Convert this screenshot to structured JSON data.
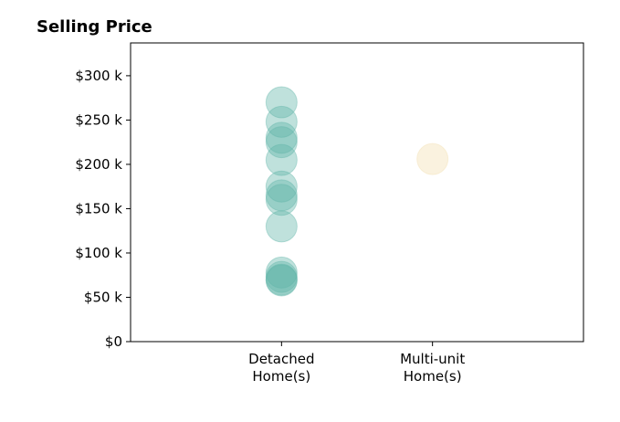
{
  "chart_data": {
    "type": "scatter",
    "title": "Selling Price",
    "xlabel": "",
    "ylabel": "",
    "categories": [
      [
        "Detached",
        "Home(s)"
      ],
      [
        "Multi-unit",
        "Home(s)"
      ]
    ],
    "xlim": [
      -1,
      2
    ],
    "ylim": [
      0,
      337000
    ],
    "yticks": [
      0,
      50000,
      100000,
      150000,
      200000,
      250000,
      300000
    ],
    "ytick_labels": [
      "$0",
      "$50 k",
      "$100 k",
      "$150 k",
      "$200 k",
      "$250 k",
      "$300 k"
    ],
    "grid": false,
    "series": [
      {
        "category_index": 0,
        "color": "#5fb3a8",
        "values": [
          270000,
          248000,
          230000,
          225000,
          205000,
          175000,
          165000,
          160000,
          130000,
          78000,
          73000,
          70000,
          69000
        ]
      },
      {
        "category_index": 1,
        "color": "#f3deb0",
        "values": [
          206000
        ]
      }
    ]
  }
}
